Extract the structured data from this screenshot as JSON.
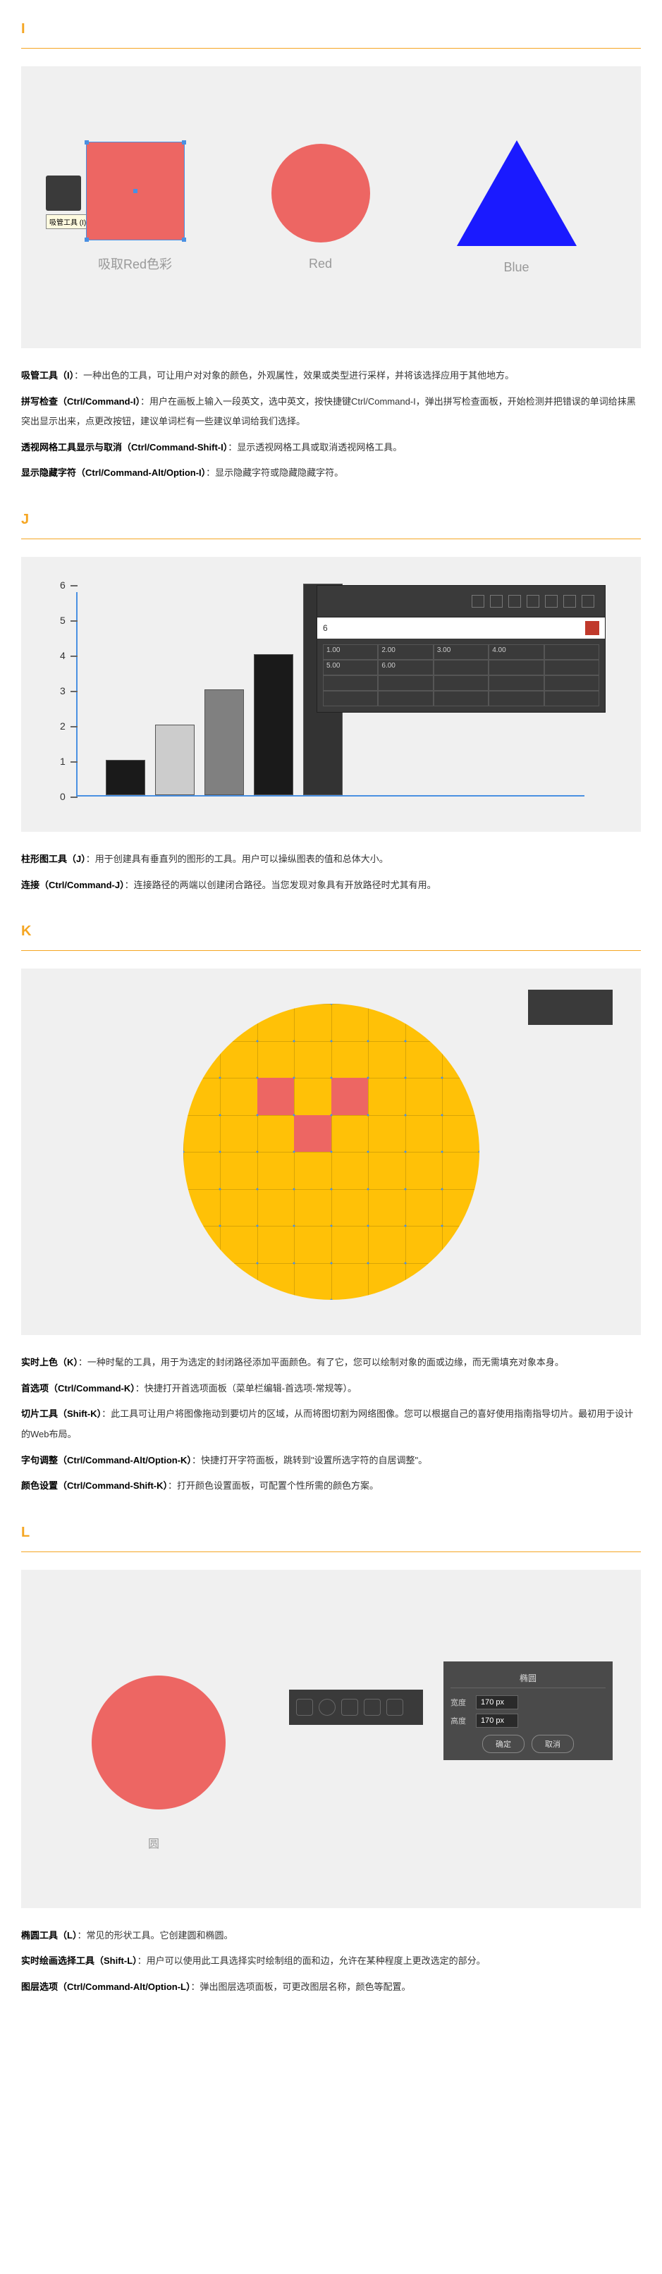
{
  "sections": {
    "I": {
      "letter": "I",
      "shapes": {
        "square": {
          "color": "#ed6663",
          "label": "吸取Red色彩"
        },
        "circle": {
          "color": "#ed6663",
          "label": "Red"
        },
        "triangle": {
          "color": "#1a1aff",
          "label": "Blue"
        }
      },
      "eyedrop_tooltip": "吸管工具 (I)",
      "desc": [
        {
          "bold": "吸管工具（I）",
          "text": "：一种出色的工具，可让用户对对象的颜色，外观属性，效果或类型进行采样，并将该选择应用于其他地方。"
        },
        {
          "bold": "拼写检查（Ctrl/Command-I）",
          "text": "：用户在画板上输入一段英文，选中英文，按快捷键Ctrl/Command-I，弹出拼写检查面板，开始检测并把错误的单词给抹黑突出显示出来，点更改按钮，建议单词栏有一些建议单词给我们选择。"
        },
        {
          "bold": "透视网格工具显示与取消（Ctrl/Command-Shift-I）",
          "text": "：显示透视网格工具或取消透视网格工具。"
        },
        {
          "bold": "显示隐藏字符（Ctrl/Command-Alt/Option-I）",
          "text": "：显示隐藏字符或隐藏隐藏字符。"
        }
      ]
    },
    "J": {
      "letter": "J",
      "chart": {
        "y_max": 6,
        "y_ticks": [
          0,
          1,
          2,
          3,
          4,
          5,
          6
        ],
        "bars": [
          {
            "height_val": 1,
            "color": "#1a1a1a",
            "x": 70
          },
          {
            "height_val": 2,
            "color": "#cccccc",
            "x": 140
          },
          {
            "height_val": 3,
            "color": "#808080",
            "x": 210
          },
          {
            "height_val": 4,
            "color": "#1a1a1a",
            "x": 280
          },
          {
            "height_val": 6,
            "color": "#333333",
            "x": 350
          }
        ],
        "dataset_label": "6",
        "data_rows": [
          [
            "1.00",
            "2.00",
            "3.00",
            "4.00",
            ""
          ],
          [
            "5.00",
            "6.00",
            "",
            "",
            ""
          ],
          [
            "",
            "",
            "",
            "",
            ""
          ],
          [
            "",
            "",
            "",
            "",
            ""
          ]
        ]
      },
      "desc": [
        {
          "bold": "柱形图工具（J）",
          "text": "：用于创建具有垂直列的图形的工具。用户可以操纵图表的值和总体大小。"
        },
        {
          "bold": "连接（Ctrl/Command-J）",
          "text": "：连接路径的两端以创建闭合路径。当您发现对象具有开放路径时尤其有用。"
        }
      ]
    },
    "K": {
      "letter": "K",
      "circle_color": "#ffc107",
      "red_cells": [
        {
          "row": 2,
          "col": 2
        },
        {
          "row": 2,
          "col": 4
        },
        {
          "row": 3,
          "col": 3
        }
      ],
      "grid_lines": 8,
      "desc": [
        {
          "bold": "实时上色（K）",
          "text": "：一种时髦的工具，用于为选定的封闭路径添加平面颜色。有了它，您可以绘制对象的面或边缘，而无需填充对象本身。"
        },
        {
          "bold": "首选项（Ctrl/Command-K）",
          "text": "：快捷打开首选项面板（菜单栏编辑-首选项-常规等）。"
        },
        {
          "bold": "切片工具（Shift-K）",
          "text": "：此工具可让用户将图像拖动到要切片的区域，从而将图切割为网络图像。您可以根据自己的喜好使用指南指导切片。最初用于设计的Web布局。"
        },
        {
          "bold": "字句调整（Ctrl/Command-Alt/Option-K）",
          "text": "：快捷打开字符面板，跳转到\"设置所选字符的自居调整\"。"
        },
        {
          "bold": "颜色设置（Ctrl/Command-Shift-K）",
          "text": "：打开颜色设置面板，可配置个性所需的颜色方案。"
        }
      ]
    },
    "L": {
      "letter": "L",
      "ellipse_color": "#ed6663",
      "ellipse_label": "圆",
      "panel2_title": "椭圆",
      "width_label": "宽度",
      "height_label": "高度",
      "width_val": "170 px",
      "height_val": "170 px",
      "ok_btn": "确定",
      "cancel_btn": "取消",
      "desc": [
        {
          "bold": "椭圆工具（L）",
          "text": "：常见的形状工具。它创建圆和椭圆。"
        },
        {
          "bold": "实时绘画选择工具（Shift-L）",
          "text": "：用户可以使用此工具选择实时绘制组的面和边，允许在某种程度上更改选定的部分。"
        },
        {
          "bold": "图层选项（Ctrl/Command-Alt/Option-L）",
          "text": "：弹出图层选项面板，可更改图层名称，颜色等配置。"
        }
      ]
    }
  }
}
